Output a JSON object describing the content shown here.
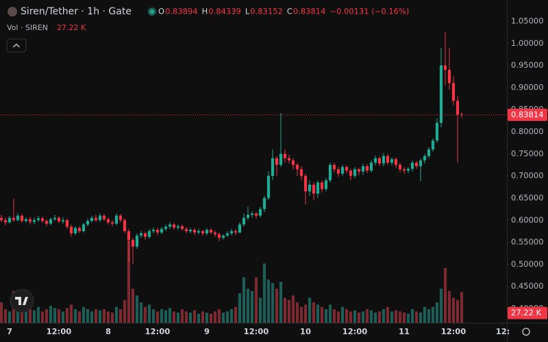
{
  "chart_data": {
    "type": "candlestick",
    "title": "Siren/Tether · 1h · Gate",
    "ohlc_labels": [
      "O",
      "H",
      "L",
      "C"
    ],
    "change_label": "−0.00131 (−0.16%)",
    "volume_title": "Vol · SIREN",
    "volume_label": "27.22 K",
    "up_color": "#22ab94",
    "down_color": "#f23645",
    "volume_up_color": "#1e5e56",
    "volume_down_color": "#7a2a30",
    "x": [
      -2,
      -1,
      0,
      1,
      2,
      3,
      4,
      5,
      6,
      7,
      8,
      9,
      10,
      11,
      12,
      13,
      14,
      15,
      16,
      17,
      18,
      19,
      20,
      21,
      22,
      23,
      24,
      25,
      26,
      27,
      28,
      29,
      30,
      31,
      32,
      33,
      34,
      35,
      36,
      37,
      38,
      39,
      40,
      41,
      42,
      43,
      44,
      45,
      46,
      47,
      48,
      49,
      50,
      51,
      52,
      53,
      54,
      55,
      56,
      57,
      58,
      59,
      60,
      61,
      62,
      63,
      64,
      65,
      66,
      67,
      68,
      69,
      70,
      71,
      72,
      73,
      74,
      75,
      76,
      77,
      78,
      79,
      80,
      81,
      82,
      83,
      84,
      85,
      86,
      87,
      88,
      89,
      90,
      91,
      92,
      93,
      94,
      95,
      96,
      97,
      98,
      99,
      100,
      101,
      102,
      103,
      104,
      105,
      106,
      107,
      108,
      109,
      110
    ],
    "open": [
      0.605,
      0.6,
      0.595,
      0.605,
      0.6,
      0.61,
      0.598,
      0.602,
      0.596,
      0.6,
      0.604,
      0.598,
      0.592,
      0.602,
      0.605,
      0.597,
      0.6,
      0.585,
      0.57,
      0.582,
      0.575,
      0.59,
      0.598,
      0.605,
      0.6,
      0.61,
      0.602,
      0.595,
      0.592,
      0.61,
      0.6,
      0.575,
      0.555,
      0.54,
      0.565,
      0.57,
      0.562,
      0.575,
      0.578,
      0.572,
      0.58,
      0.585,
      0.59,
      0.583,
      0.586,
      0.58,
      0.575,
      0.578,
      0.572,
      0.575,
      0.57,
      0.578,
      0.572,
      0.568,
      0.56,
      0.565,
      0.57,
      0.575,
      0.572,
      0.59,
      0.605,
      0.612,
      0.615,
      0.61,
      0.625,
      0.65,
      0.7,
      0.74,
      0.725,
      0.75,
      0.74,
      0.735,
      0.725,
      0.715,
      0.7,
      0.665,
      0.68,
      0.66,
      0.685,
      0.67,
      0.69,
      0.725,
      0.715,
      0.705,
      0.72,
      0.712,
      0.7,
      0.715,
      0.71,
      0.722,
      0.712,
      0.73,
      0.74,
      0.728,
      0.745,
      0.73,
      0.738,
      0.725,
      0.715,
      0.712,
      0.716,
      0.73,
      0.722,
      0.735,
      0.745,
      0.76,
      0.78,
      0.82,
      0.95,
      0.94,
      0.91,
      0.87,
      0.83894
    ],
    "high": [
      0.612,
      0.606,
      0.61,
      0.648,
      0.616,
      0.614,
      0.606,
      0.608,
      0.606,
      0.61,
      0.608,
      0.602,
      0.606,
      0.612,
      0.61,
      0.606,
      0.603,
      0.59,
      0.586,
      0.586,
      0.594,
      0.604,
      0.61,
      0.612,
      0.616,
      0.614,
      0.606,
      0.6,
      0.615,
      0.614,
      0.604,
      0.58,
      0.56,
      0.57,
      0.576,
      0.574,
      0.58,
      0.584,
      0.582,
      0.584,
      0.59,
      0.596,
      0.594,
      0.59,
      0.59,
      0.584,
      0.582,
      0.582,
      0.58,
      0.578,
      0.582,
      0.582,
      0.576,
      0.572,
      0.568,
      0.575,
      0.58,
      0.58,
      0.595,
      0.615,
      0.63,
      0.62,
      0.618,
      0.63,
      0.655,
      0.71,
      0.76,
      0.745,
      0.842,
      0.76,
      0.748,
      0.74,
      0.73,
      0.722,
      0.705,
      0.69,
      0.686,
      0.69,
      0.69,
      0.695,
      0.73,
      0.73,
      0.72,
      0.725,
      0.724,
      0.716,
      0.72,
      0.718,
      0.728,
      0.726,
      0.735,
      0.746,
      0.744,
      0.752,
      0.75,
      0.742,
      0.742,
      0.73,
      0.72,
      0.72,
      0.735,
      0.734,
      0.74,
      0.75,
      0.765,
      0.785,
      0.83,
      0.99,
      1.025,
      0.99,
      0.925,
      0.88,
      0.84339
    ],
    "low": [
      0.595,
      0.588,
      0.592,
      0.596,
      0.597,
      0.594,
      0.594,
      0.59,
      0.59,
      0.596,
      0.594,
      0.586,
      0.588,
      0.598,
      0.593,
      0.592,
      0.58,
      0.562,
      0.566,
      0.57,
      0.572,
      0.586,
      0.595,
      0.596,
      0.596,
      0.598,
      0.59,
      0.586,
      0.588,
      0.595,
      0.57,
      0.505,
      0.5,
      0.535,
      0.56,
      0.556,
      0.558,
      0.57,
      0.566,
      0.568,
      0.576,
      0.58,
      0.578,
      0.578,
      0.576,
      0.57,
      0.57,
      0.566,
      0.568,
      0.565,
      0.566,
      0.568,
      0.562,
      0.552,
      0.556,
      0.562,
      0.565,
      0.566,
      0.57,
      0.585,
      0.6,
      0.606,
      0.604,
      0.606,
      0.618,
      0.645,
      0.69,
      0.7,
      0.72,
      0.73,
      0.728,
      0.715,
      0.7,
      0.69,
      0.635,
      0.655,
      0.645,
      0.65,
      0.662,
      0.665,
      0.685,
      0.708,
      0.698,
      0.7,
      0.705,
      0.69,
      0.695,
      0.702,
      0.702,
      0.706,
      0.708,
      0.724,
      0.722,
      0.722,
      0.725,
      0.724,
      0.718,
      0.708,
      0.705,
      0.706,
      0.71,
      0.716,
      0.688,
      0.728,
      0.74,
      0.755,
      0.775,
      0.81,
      0.905,
      0.895,
      0.86,
      0.73,
      0.83152
    ],
    "close": [
      0.6,
      0.595,
      0.605,
      0.6,
      0.61,
      0.598,
      0.602,
      0.596,
      0.6,
      0.604,
      0.598,
      0.592,
      0.602,
      0.605,
      0.597,
      0.6,
      0.585,
      0.57,
      0.582,
      0.575,
      0.59,
      0.598,
      0.605,
      0.6,
      0.61,
      0.602,
      0.595,
      0.592,
      0.61,
      0.6,
      0.575,
      0.555,
      0.54,
      0.565,
      0.57,
      0.562,
      0.575,
      0.578,
      0.572,
      0.58,
      0.585,
      0.59,
      0.583,
      0.586,
      0.58,
      0.575,
      0.578,
      0.572,
      0.575,
      0.57,
      0.578,
      0.572,
      0.568,
      0.56,
      0.565,
      0.57,
      0.575,
      0.572,
      0.59,
      0.605,
      0.612,
      0.615,
      0.61,
      0.625,
      0.65,
      0.7,
      0.74,
      0.725,
      0.75,
      0.74,
      0.735,
      0.725,
      0.715,
      0.7,
      0.665,
      0.68,
      0.66,
      0.685,
      0.67,
      0.69,
      0.725,
      0.715,
      0.705,
      0.72,
      0.712,
      0.7,
      0.715,
      0.71,
      0.722,
      0.712,
      0.73,
      0.74,
      0.728,
      0.745,
      0.73,
      0.738,
      0.725,
      0.715,
      0.712,
      0.716,
      0.73,
      0.722,
      0.735,
      0.745,
      0.76,
      0.78,
      0.82,
      0.95,
      0.94,
      0.91,
      0.87,
      0.83894,
      0.83814
    ],
    "volume": [
      18,
      12,
      10,
      28,
      14,
      12,
      10,
      12,
      11,
      14,
      10,
      12,
      15,
      13,
      12,
      10,
      13,
      16,
      12,
      10,
      14,
      12,
      10,
      12,
      11,
      12,
      10,
      9,
      14,
      12,
      20,
      72,
      30,
      24,
      18,
      14,
      16,
      12,
      10,
      12,
      11,
      13,
      10,
      9,
      12,
      10,
      9,
      11,
      8,
      10,
      9,
      8,
      10,
      12,
      9,
      10,
      12,
      14,
      26,
      40,
      30,
      28,
      40,
      22,
      52,
      38,
      35,
      30,
      36,
      22,
      20,
      24,
      18,
      14,
      16,
      22,
      18,
      16,
      14,
      12,
      16,
      12,
      10,
      14,
      12,
      10,
      11,
      9,
      10,
      12,
      11,
      9,
      10,
      12,
      14,
      10,
      11,
      10,
      9,
      8,
      12,
      10,
      9,
      14,
      12,
      14,
      18,
      30,
      48,
      28,
      22,
      20,
      27.22
    ],
    "xlim": [
      -2.33,
      121
    ],
    "xticks": [
      {
        "value": 0,
        "label": "7"
      },
      {
        "value": 12,
        "label": "12:00"
      },
      {
        "value": 24,
        "label": "8"
      },
      {
        "value": 36,
        "label": "12:00"
      },
      {
        "value": 48,
        "label": "9"
      },
      {
        "value": 60,
        "label": "12:00"
      },
      {
        "value": 72,
        "label": "10"
      },
      {
        "value": 84,
        "label": "12:00"
      },
      {
        "value": 96,
        "label": "11"
      },
      {
        "value": 108,
        "label": "12:00"
      },
      {
        "value": 120,
        "label": "12:"
      }
    ],
    "ylim": [
      0.3675,
      1.098
    ],
    "yticks": [
      {
        "value": 0.4,
        "label": "0.40000"
      },
      {
        "value": 0.45,
        "label": "0.45000"
      },
      {
        "value": 0.5,
        "label": "0.50000"
      },
      {
        "value": 0.55,
        "label": "0.55000"
      },
      {
        "value": 0.6,
        "label": "0.60000"
      },
      {
        "value": 0.65,
        "label": "0.65000"
      },
      {
        "value": 0.7,
        "label": "0.70000"
      },
      {
        "value": 0.75,
        "label": "0.75000"
      },
      {
        "value": 0.8,
        "label": "0.80000"
      },
      {
        "value": 0.85,
        "label": "0.85000"
      },
      {
        "value": 0.9,
        "label": "0.90000"
      },
      {
        "value": 0.95,
        "label": "0.95000"
      },
      {
        "value": 1.0,
        "label": "1.00000"
      },
      {
        "value": 1.05,
        "label": "1.05000"
      }
    ],
    "volume_lim": [
      0,
      90
    ]
  }
}
